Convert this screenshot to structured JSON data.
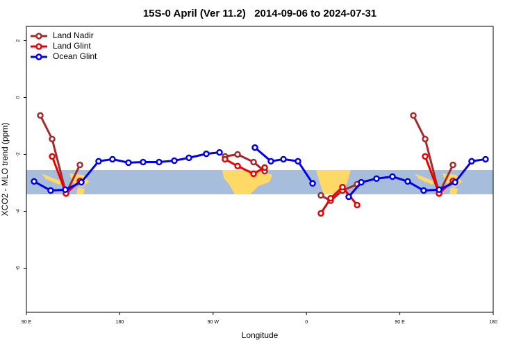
{
  "chart_data": {
    "type": "line",
    "title": "15S-0 April (Ver 11.2)   2014-09-06 to 2024-07-31",
    "xlabel": "Longitude",
    "ylabel": "XCO2 - MLO trend (ppm)",
    "xlim": [
      90,
      540
    ],
    "xticks": [
      {
        "value": 90,
        "label": "90 E"
      },
      180,
      {
        "value": 270,
        "label": "90 W"
      },
      {
        "value": 360,
        "label": "0"
      },
      {
        "value": 450,
        "label": "90 E"
      },
      {
        "value": 540,
        "label": "180"
      }
    ],
    "ylim": [
      -7.55,
      2.5
    ],
    "yticks": [
      2,
      0,
      -2,
      -4,
      -6
    ],
    "legend": "top-left",
    "series": [
      {
        "name": "Land Nadir",
        "color": "#a52a2a",
        "x": [
          103.4,
          114.8,
          128.2,
          141.6,
          null,
          281.5,
          293.6,
          309.0,
          319.7,
          null,
          373.9,
          383.3,
          394.7,
          408.8,
          null,
          463.0,
          474.4,
          487.8,
          501.2
        ],
        "values": [
          -0.63,
          -1.46,
          -3.37,
          -2.37,
          null,
          -2.07,
          -2.0,
          -2.27,
          -2.59,
          null,
          -3.44,
          -3.63,
          -3.27,
          -3.05,
          null,
          -0.63,
          -1.46,
          -3.37,
          -2.37
        ]
      },
      {
        "name": "Land Glint",
        "color": "#ee0000",
        "x": [
          114.8,
          128.2,
          141.6,
          null,
          281.5,
          293.6,
          309.0,
          319.7,
          null,
          373.9,
          383.3,
          394.7,
          408.8,
          null,
          474.4,
          487.8,
          501.2
        ],
        "values": [
          -2.07,
          -3.37,
          -2.93,
          null,
          -2.17,
          -2.41,
          -2.68,
          -2.46,
          null,
          -4.07,
          -3.54,
          -3.15,
          -3.78,
          null,
          -2.07,
          -3.37,
          -2.93
        ]
      },
      {
        "name": "Ocean Glint",
        "color": "#0000ee",
        "x": [
          97.4,
          113.4,
          127.5,
          142.9,
          159.6,
          173.0,
          188.4,
          202.5,
          217.9,
          232.6,
          246.7,
          263.4,
          276.2,
          null,
          310.3,
          325.7,
          337.8,
          351.8,
          365.9,
          null,
          400.7,
          412.8,
          427.5,
          442.9,
          457.6,
          473.0,
          487.8,
          503.2,
          519.2,
          532.6
        ],
        "values": [
          -2.95,
          -3.27,
          -3.24,
          -2.98,
          -2.24,
          -2.17,
          -2.29,
          -2.27,
          -2.27,
          -2.22,
          -2.12,
          -1.98,
          -1.93,
          null,
          -1.76,
          -2.24,
          -2.17,
          -2.24,
          -3.02,
          null,
          -3.49,
          -2.98,
          -2.85,
          -2.78,
          -2.95,
          -3.27,
          -3.24,
          -2.98,
          -2.24,
          -2.17
        ]
      }
    ]
  }
}
